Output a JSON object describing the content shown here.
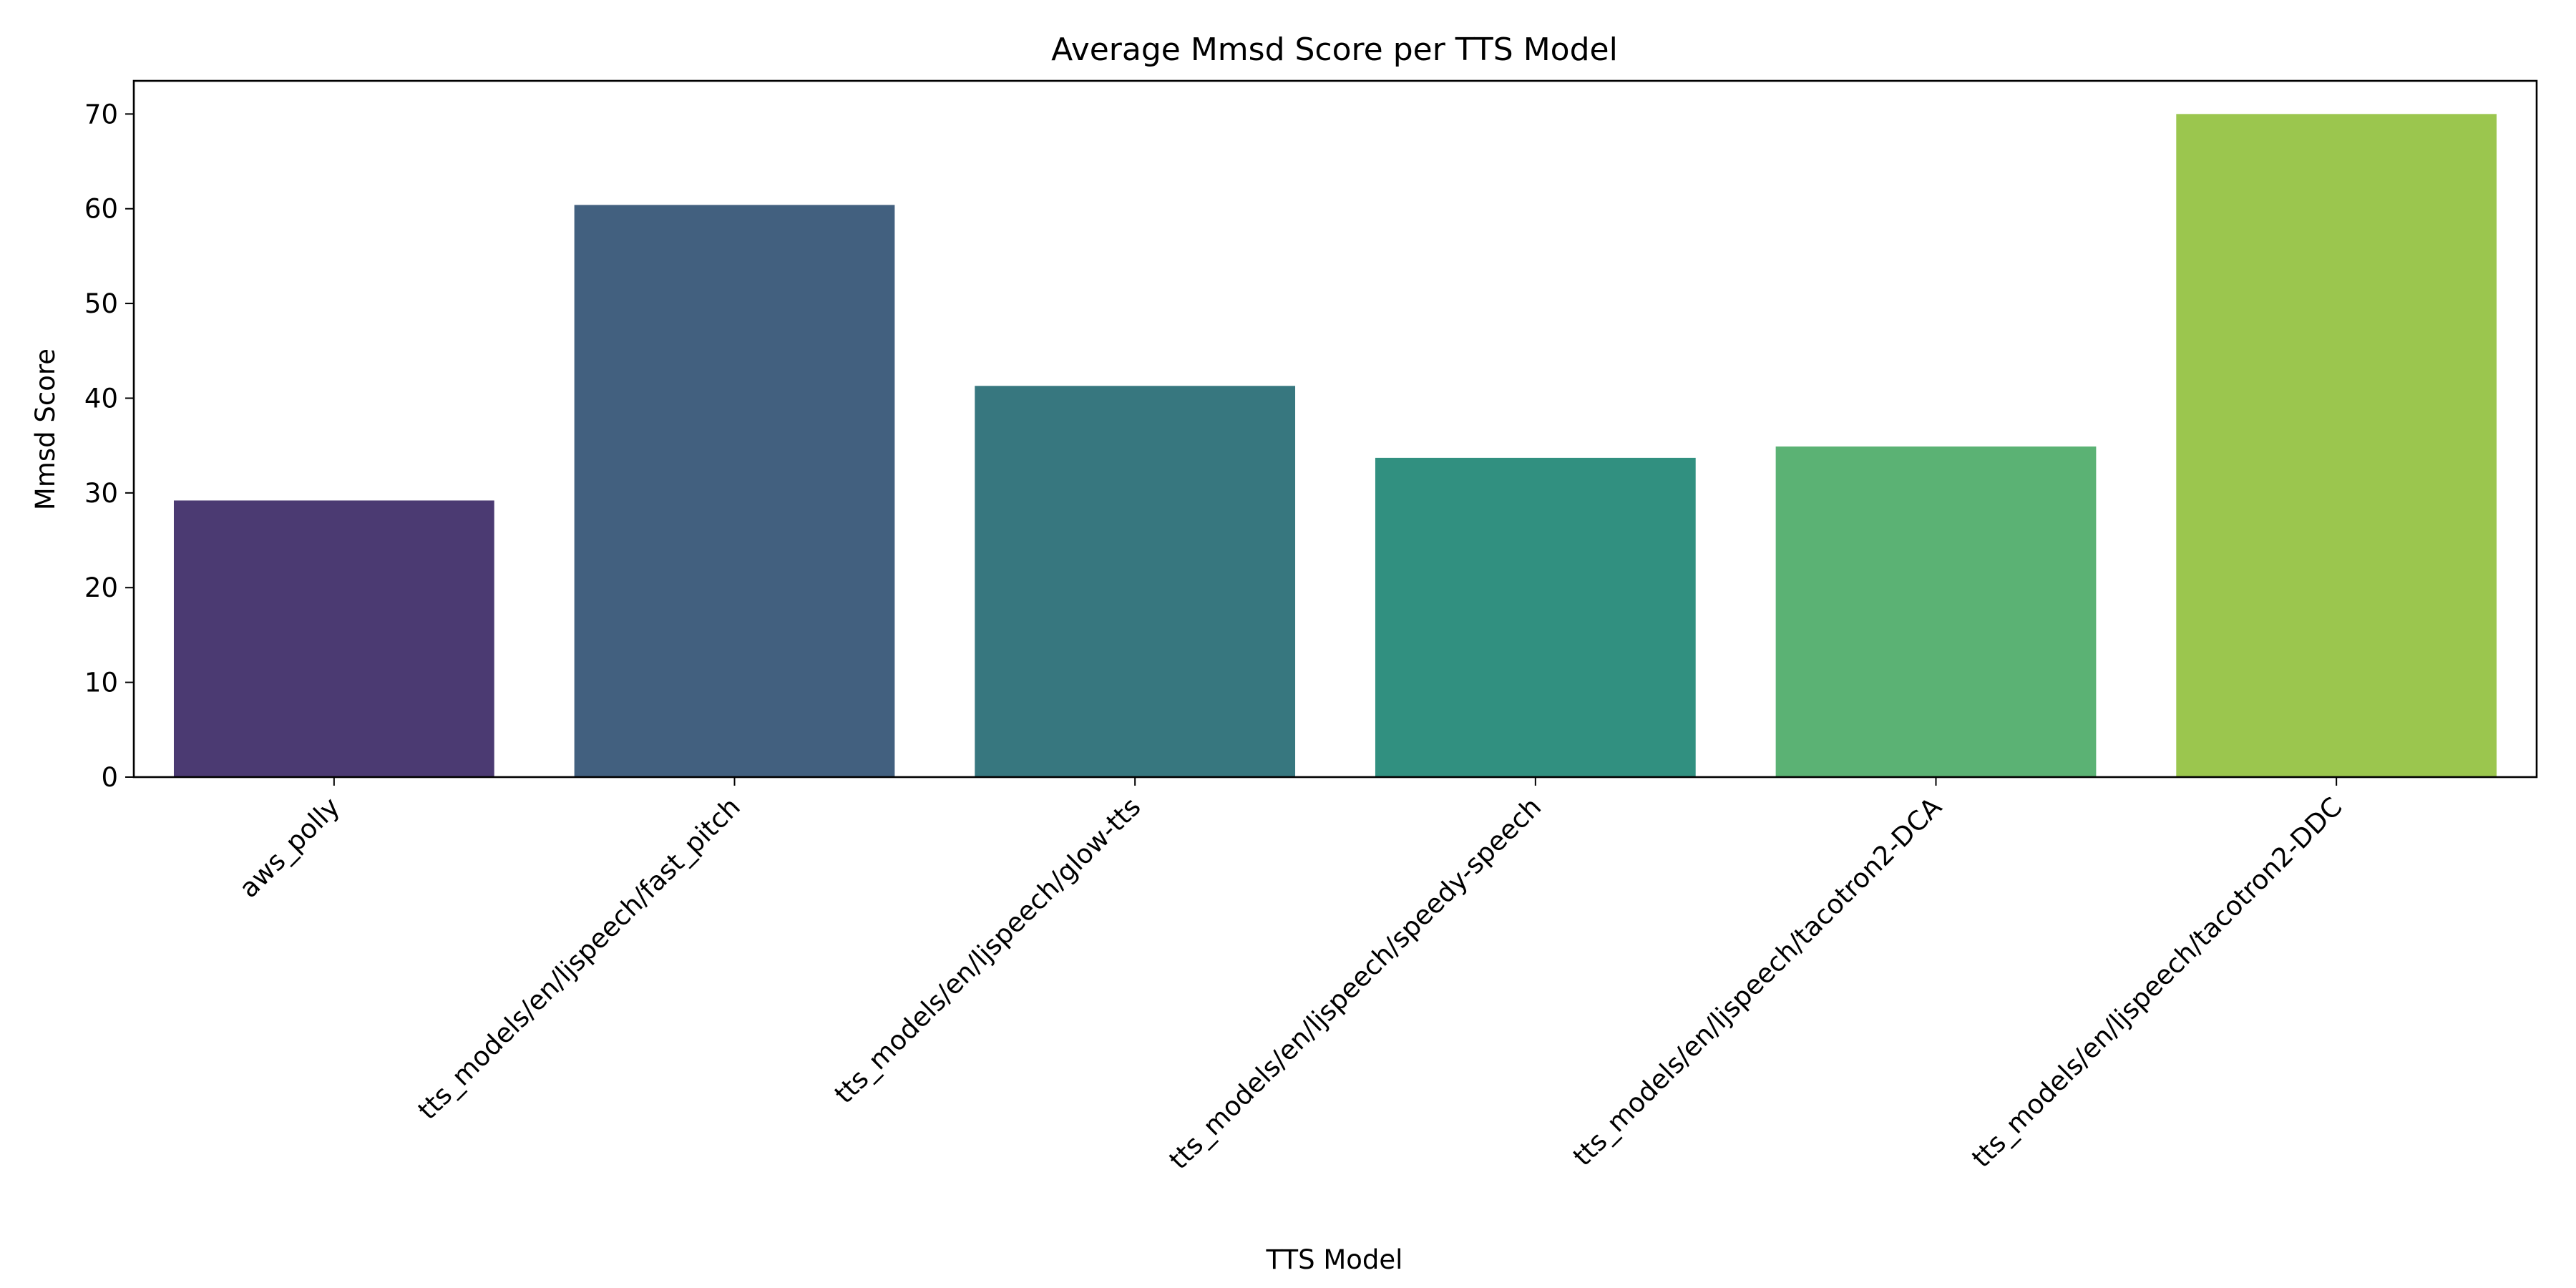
{
  "chart_data": {
    "type": "bar",
    "title": "Average Mmsd Score per TTS Model",
    "xlabel": "TTS Model",
    "ylabel": "Mmsd Score",
    "categories": [
      "aws_polly",
      "tts_models/en/ljspeech/fast_pitch",
      "tts_models/en/ljspeech/glow-tts",
      "tts_models/en/ljspeech/speedy-speech",
      "tts_models/en/ljspeech/tacotron2-DCA",
      "tts_models/en/ljspeech/tacotron2-DDC"
    ],
    "values": [
      29.2,
      60.4,
      41.3,
      33.7,
      34.9,
      70.0
    ],
    "colors": [
      "#4b3a72",
      "#42607f",
      "#37777f",
      "#319080",
      "#5bb274",
      "#9bc64e"
    ],
    "ylim": [
      0,
      73.5
    ],
    "yticks": [
      0,
      10,
      20,
      30,
      40,
      50,
      60,
      70
    ],
    "grid": false,
    "legend": "none"
  }
}
